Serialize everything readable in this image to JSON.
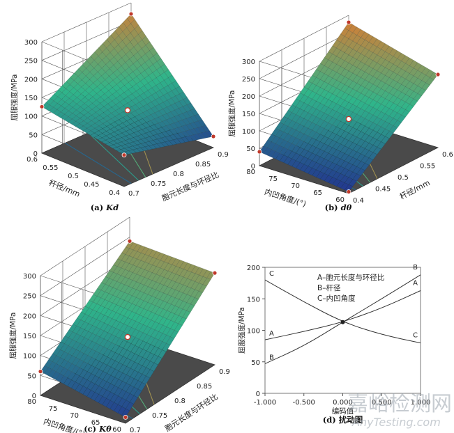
{
  "figure": {
    "watermark_cn": "嘉峪检测网",
    "watermark_en": "AnyTesting.com"
  },
  "colors": {
    "floor": "#4a4a4a",
    "grid": "#555555",
    "surf_low": "#22318f",
    "surf_mid": "#2fb58a",
    "surf_high": "#e9772a",
    "marker": "#c0392b"
  },
  "chart_data": [
    {
      "type": "surface",
      "caption_prefix": "(a)",
      "caption_italic": "Kd",
      "zlabel": "屈服强度/MPa",
      "xlabel": "胞元长度与环径比",
      "ylabel": "杆径/mm",
      "xticks": [
        "0.7",
        "0.75",
        "0.8",
        "0.85",
        "0.9"
      ],
      "yticks": [
        "0.4",
        "0.45",
        "0.5",
        "0.55",
        "0.6"
      ],
      "zticks": [
        "0",
        "50",
        "100",
        "150",
        "200",
        "250",
        "300"
      ],
      "xlim": [
        0.7,
        0.9
      ],
      "ylim": [
        0.4,
        0.6
      ],
      "zlim": [
        0,
        300
      ],
      "corners": {
        "x_lo_y_lo": 85,
        "x_hi_y_lo": 30,
        "x_lo_y_hi": 125,
        "x_hi_y_hi": 270
      },
      "center_value": 108
    },
    {
      "type": "surface",
      "caption_prefix": "(b)",
      "caption_italic": "dθ",
      "zlabel": "屈服强度/MPa",
      "xlabel": "杆径/mm",
      "ylabel": "内凹角度/(°)",
      "xticks": [
        "0.4",
        "0.45",
        "0.5",
        "0.55",
        "0.6"
      ],
      "yticks": [
        "60",
        "65",
        "70",
        "75",
        "80"
      ],
      "zticks": [
        "0",
        "50",
        "100",
        "150",
        "200",
        "250",
        "300"
      ],
      "xlim": [
        0.4,
        0.6
      ],
      "ylim": [
        60,
        80
      ],
      "zlim": [
        0,
        300
      ],
      "corners": {
        "x_lo_y_lo": 5,
        "x_hi_y_lo": 210,
        "x_lo_y_hi": 40,
        "x_hi_y_hi": 280
      },
      "center_value": 108
    },
    {
      "type": "surface",
      "caption_prefix": "(c)",
      "caption_italic": "Kθ",
      "zlabel": "屈服强度/MPa",
      "xlabel": "胞元长度与环径比",
      "ylabel": "内凹角度/(°)",
      "xticks": [
        "0.7",
        "0.75",
        "0.8",
        "0.85",
        "0.9"
      ],
      "yticks": [
        "60",
        "65",
        "70",
        "75",
        "80"
      ],
      "zticks": [
        "0",
        "50",
        "100",
        "150",
        "200",
        "250",
        "300"
      ],
      "xlim": [
        0.7,
        0.9
      ],
      "ylim": [
        60,
        80
      ],
      "zlim": [
        0,
        300
      ],
      "corners": {
        "x_lo_y_lo": 15,
        "x_hi_y_lo": 230,
        "x_lo_y_hi": 60,
        "x_hi_y_hi": 240
      },
      "center_value": 108
    },
    {
      "type": "line",
      "caption_prefix": "(d)",
      "caption_text": "扰动图",
      "xlabel": "编码值",
      "ylabel": "屈服强度/MPa",
      "x": [
        -1.0,
        -0.5,
        0.0,
        0.5,
        1.0
      ],
      "xtick_labels": [
        "-1.000",
        "-0.500",
        "0.000",
        "0.500",
        "1.000"
      ],
      "yticks": [
        0,
        50,
        100,
        150,
        200
      ],
      "xlim": [
        -1.0,
        1.0
      ],
      "ylim": [
        0,
        200
      ],
      "legend": [
        "A–胞元长度与环径比",
        "B–杆径",
        "C–内凹角度"
      ],
      "series": [
        {
          "name": "A",
          "values": [
            85,
            98,
            113,
            135,
            163
          ]
        },
        {
          "name": "B",
          "values": [
            47,
            75,
            113,
            150,
            188
          ]
        },
        {
          "name": "C",
          "values": [
            180,
            145,
            113,
            93,
            80
          ]
        }
      ]
    }
  ]
}
